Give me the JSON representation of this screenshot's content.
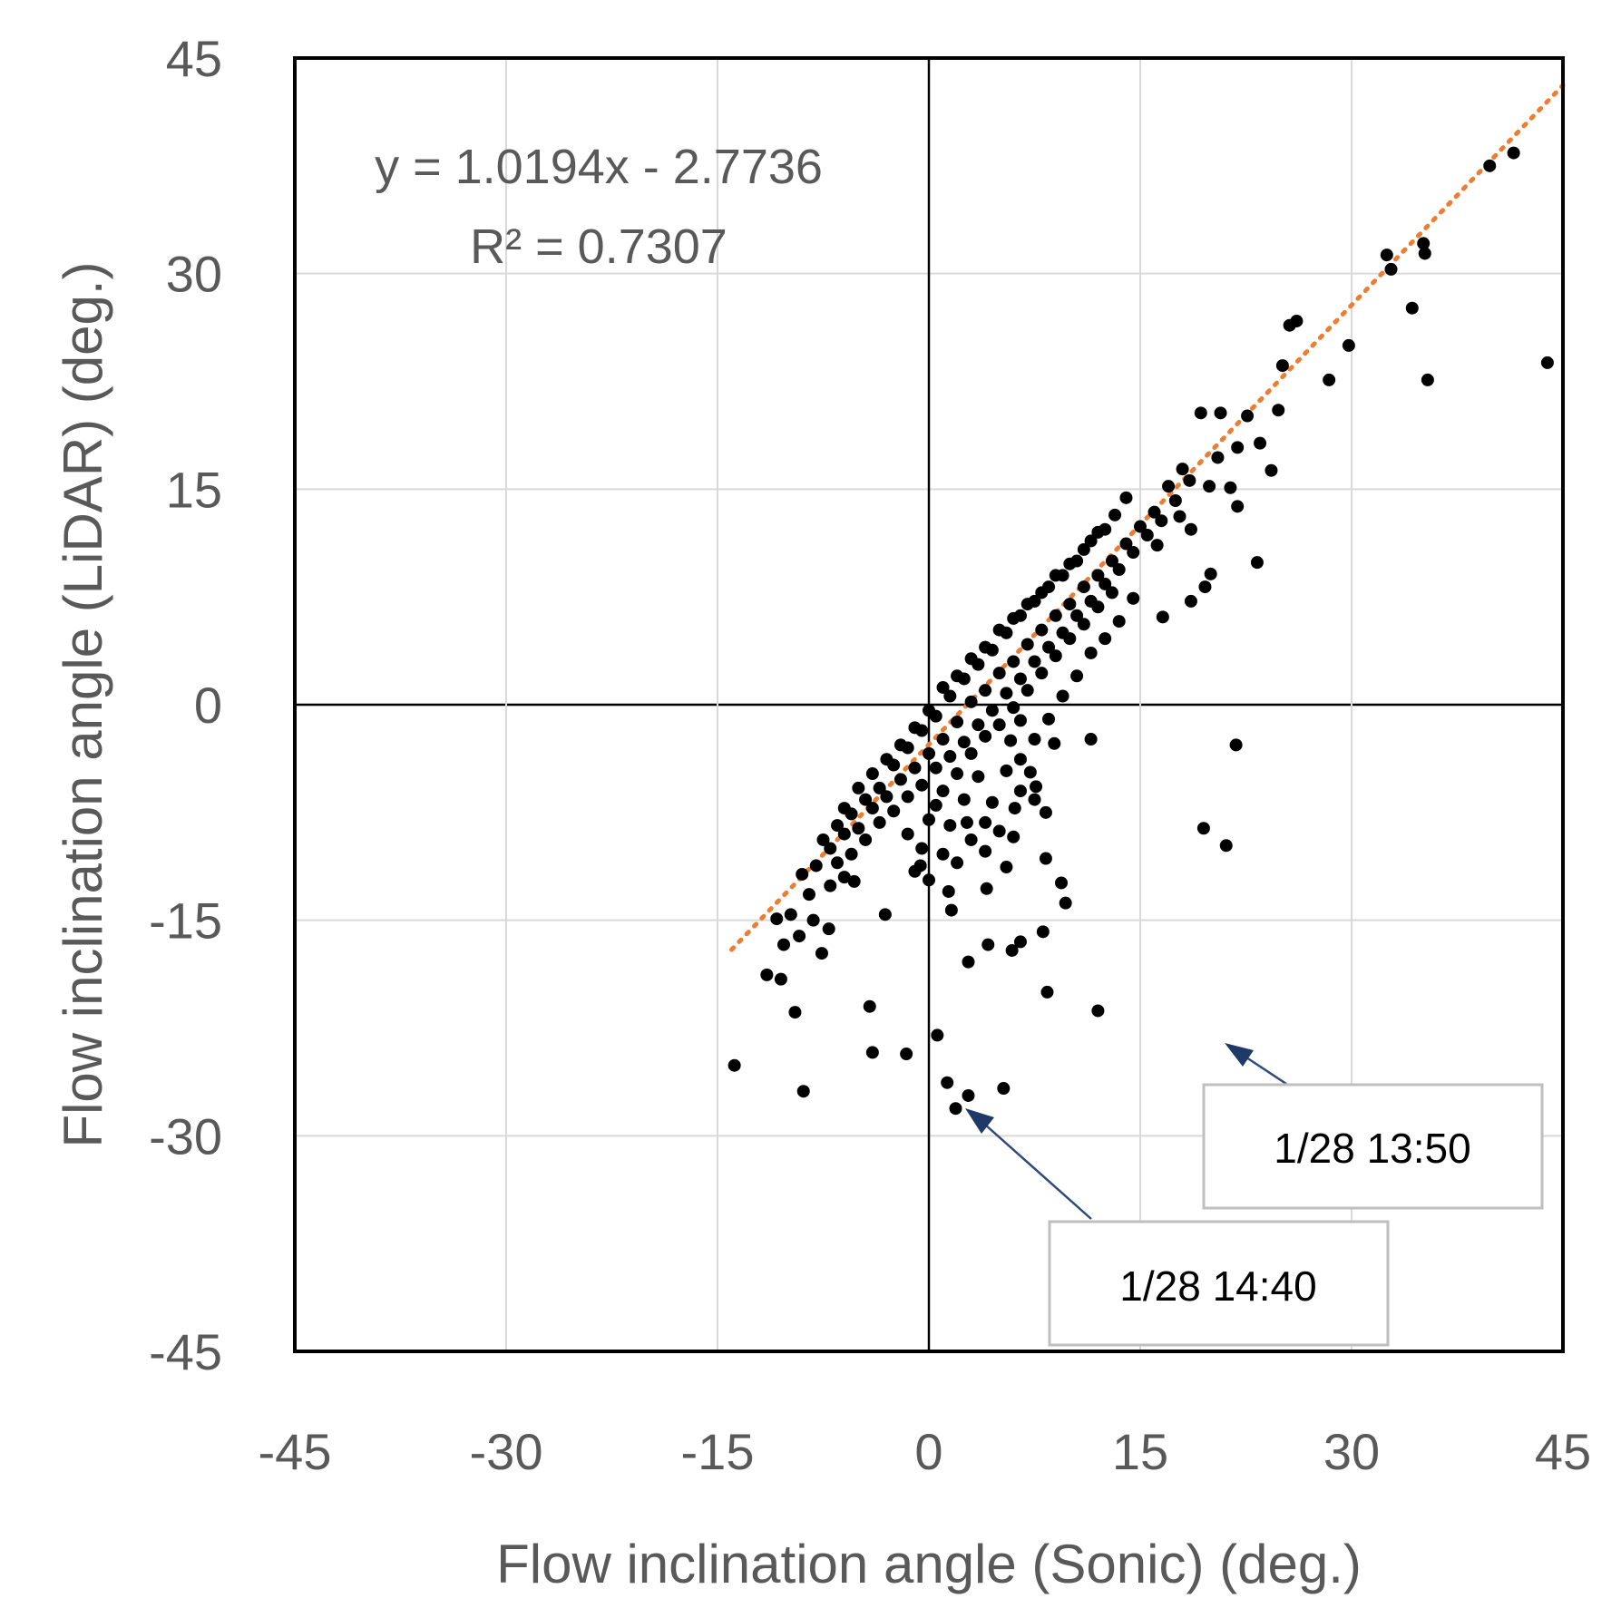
{
  "chart_data": {
    "type": "scatter",
    "xlabel": "Flow inclination angle (Sonic) (deg.)",
    "ylabel": "Flow inclination angle (LiDAR) (deg.)",
    "xlim": [
      -45,
      45
    ],
    "ylim": [
      -45,
      45
    ],
    "xticks": [
      "-45",
      "-30",
      "-15",
      "0",
      "15",
      "30",
      "45"
    ],
    "yticks": [
      "45",
      "30",
      "15",
      "0",
      "-15",
      "-30",
      "-45"
    ],
    "grid": true,
    "marker_color": "#000000",
    "trendline_color": "#ed7d31",
    "trendline": {
      "slope": 1.0194,
      "intercept": -2.7736,
      "x_range": [
        -14,
        45
      ],
      "equation": "y = 1.0194x - 2.7736",
      "r2": "R² = 0.7307"
    },
    "annotations": [
      {
        "label": "1/28 13:50",
        "x": 20.8,
        "y": -22.3
      },
      {
        "label": "1/28 14:40",
        "x": 2.9,
        "y": -27.5
      }
    ],
    "points": [
      [
        -13.8,
        -25.1
      ],
      [
        -11.5,
        -18.8
      ],
      [
        -10.5,
        -19.1
      ],
      [
        -9.5,
        -21.4
      ],
      [
        -8.9,
        -26.9
      ],
      [
        -9.8,
        -14.6
      ],
      [
        -10.8,
        -14.9
      ],
      [
        -9.2,
        -16.1
      ],
      [
        -8.2,
        -15.0
      ],
      [
        -7.1,
        -15.6
      ],
      [
        -7.6,
        -17.3
      ],
      [
        -10.3,
        -16.7
      ],
      [
        -5.3,
        -12.3
      ],
      [
        -4.2,
        -21.0
      ],
      [
        -4.0,
        -24.2
      ],
      [
        -1.6,
        -24.3
      ],
      [
        -3.1,
        -14.6
      ],
      [
        -0.6,
        -11.2
      ],
      [
        0.6,
        -23.0
      ],
      [
        1.3,
        -26.3
      ],
      [
        1.9,
        -28.1
      ],
      [
        2.8,
        -27.2
      ],
      [
        5.3,
        -26.7
      ],
      [
        2.8,
        -17.9
      ],
      [
        4.2,
        -16.7
      ],
      [
        1.6,
        -14.3
      ],
      [
        1.4,
        -13.0
      ],
      [
        4.1,
        -12.8
      ],
      [
        5.9,
        -17.1
      ],
      [
        6.5,
        -16.5
      ],
      [
        8.1,
        -15.8
      ],
      [
        8.4,
        -20.0
      ],
      [
        12.0,
        -21.3
      ],
      [
        9.7,
        -13.8
      ],
      [
        9.4,
        -12.4
      ],
      [
        8.3,
        -10.7
      ],
      [
        5.5,
        -11.3
      ],
      [
        4.0,
        -10.2
      ],
      [
        2.7,
        -8.2
      ],
      [
        6.1,
        -7.2
      ],
      [
        8.3,
        -7.5
      ],
      [
        7.6,
        -5.7
      ],
      [
        7.2,
        -4.7
      ],
      [
        11.5,
        -2.4
      ],
      [
        8.9,
        -2.7
      ],
      [
        6.5,
        -1.1
      ],
      [
        5.8,
        -2.5
      ],
      [
        19.5,
        -8.6
      ],
      [
        21.1,
        -9.8
      ],
      [
        21.8,
        -2.8
      ],
      [
        16.6,
        6.1
      ],
      [
        18.6,
        7.2
      ],
      [
        19.6,
        8.2
      ],
      [
        20.0,
        9.1
      ],
      [
        23.3,
        9.9
      ],
      [
        21.9,
        13.8
      ],
      [
        21.4,
        15.1
      ],
      [
        24.3,
        16.3
      ],
      [
        19.9,
        15.2
      ],
      [
        20.5,
        17.2
      ],
      [
        19.3,
        20.3
      ],
      [
        20.7,
        20.3
      ],
      [
        21.9,
        17.9
      ],
      [
        22.6,
        20.1
      ],
      [
        23.5,
        18.2
      ],
      [
        24.8,
        20.5
      ],
      [
        16.2,
        11.1
      ],
      [
        17.8,
        13.1
      ],
      [
        18.6,
        12.2
      ],
      [
        25.1,
        23.6
      ],
      [
        25.6,
        26.4
      ],
      [
        26.1,
        26.7
      ],
      [
        28.4,
        22.6
      ],
      [
        29.8,
        25.0
      ],
      [
        32.8,
        30.3
      ],
      [
        32.5,
        31.3
      ],
      [
        34.3,
        27.6
      ],
      [
        35.1,
        32.1
      ],
      [
        35.2,
        31.4
      ],
      [
        35.4,
        22.6
      ],
      [
        39.8,
        37.5
      ],
      [
        41.5,
        38.4
      ],
      [
        43.9,
        23.8
      ],
      [
        -7.0,
        -10.0
      ],
      [
        -6.5,
        -11.0
      ],
      [
        -6.0,
        -9.0
      ],
      [
        -5.5,
        -10.4
      ],
      [
        -5.0,
        -8.6
      ],
      [
        -4.5,
        -9.4
      ],
      [
        -4.0,
        -7.2
      ],
      [
        -3.5,
        -8.2
      ],
      [
        -3.0,
        -6.4
      ],
      [
        -2.5,
        -7.4
      ],
      [
        -2.0,
        -5.2
      ],
      [
        -1.5,
        -6.4
      ],
      [
        -1.0,
        -4.4
      ],
      [
        -0.5,
        -5.6
      ],
      [
        0.0,
        -3.4
      ],
      [
        0.5,
        -4.4
      ],
      [
        1.0,
        -2.4
      ],
      [
        1.5,
        -3.6
      ],
      [
        2.0,
        -1.2
      ],
      [
        2.5,
        -2.6
      ],
      [
        3.0,
        0.2
      ],
      [
        3.5,
        -1.4
      ],
      [
        4.0,
        1.0
      ],
      [
        4.5,
        -0.4
      ],
      [
        5.0,
        2.2
      ],
      [
        5.5,
        0.8
      ],
      [
        6.0,
        3.0
      ],
      [
        6.5,
        1.8
      ],
      [
        7.0,
        4.2
      ],
      [
        7.5,
        3.0
      ],
      [
        8.0,
        5.2
      ],
      [
        8.5,
        4.0
      ],
      [
        9.0,
        6.2
      ],
      [
        9.5,
        5.0
      ],
      [
        10.0,
        7.0
      ],
      [
        10.5,
        6.2
      ],
      [
        11.0,
        8.2
      ],
      [
        11.5,
        7.2
      ],
      [
        12.0,
        9.0
      ],
      [
        12.5,
        8.4
      ],
      [
        13.0,
        10.0
      ],
      [
        13.5,
        9.4
      ],
      [
        14.0,
        11.2
      ],
      [
        14.5,
        10.6
      ],
      [
        15.0,
        12.4
      ],
      [
        15.5,
        11.8
      ],
      [
        16.0,
        13.4
      ],
      [
        16.5,
        12.8
      ],
      [
        17.0,
        15.2
      ],
      [
        17.5,
        14.2
      ],
      [
        18.0,
        16.4
      ],
      [
        18.5,
        15.6
      ],
      [
        13.2,
        13.2
      ],
      [
        14.0,
        14.4
      ],
      [
        12.0,
        12.0
      ],
      [
        11.0,
        10.8
      ],
      [
        10.0,
        9.8
      ],
      [
        9.0,
        9.0
      ],
      [
        8.0,
        7.8
      ],
      [
        7.0,
        7.0
      ],
      [
        6.0,
        6.0
      ],
      [
        5.0,
        5.2
      ],
      [
        4.0,
        4.0
      ],
      [
        3.0,
        3.2
      ],
      [
        2.0,
        2.0
      ],
      [
        1.0,
        1.2
      ],
      [
        0.0,
        -0.4
      ],
      [
        -1.0,
        -1.6
      ],
      [
        -2.0,
        -2.8
      ],
      [
        -3.0,
        -3.8
      ],
      [
        -4.0,
        -4.8
      ],
      [
        -5.0,
        -5.8
      ],
      [
        -6.0,
        -7.2
      ],
      [
        0.5,
        -7.0
      ],
      [
        1.5,
        -8.4
      ],
      [
        2.5,
        -6.6
      ],
      [
        3.5,
        -5.0
      ],
      [
        4.5,
        -6.8
      ],
      [
        5.5,
        -4.6
      ],
      [
        6.5,
        -3.8
      ],
      [
        7.5,
        -2.4
      ],
      [
        8.5,
        -1.0
      ],
      [
        9.5,
        0.6
      ],
      [
        10.5,
        2.0
      ],
      [
        11.5,
        3.6
      ],
      [
        12.5,
        4.6
      ],
      [
        13.5,
        5.8
      ],
      [
        14.5,
        7.4
      ],
      [
        -1.5,
        -9.0
      ],
      [
        -0.5,
        -10.0
      ],
      [
        0.0,
        -8.0
      ],
      [
        1.0,
        -6.0
      ],
      [
        2.0,
        -4.8
      ],
      [
        3.0,
        -3.4
      ],
      [
        4.0,
        -2.2
      ],
      [
        5.0,
        -1.4
      ],
      [
        6.0,
        -0.2
      ],
      [
        7.0,
        1.0
      ],
      [
        8.0,
        2.2
      ],
      [
        9.0,
        3.4
      ],
      [
        10.0,
        4.6
      ],
      [
        11.0,
        5.6
      ],
      [
        12.0,
        6.8
      ],
      [
        13.0,
        7.8
      ],
      [
        -2.5,
        -4.2
      ],
      [
        -1.5,
        -3.0
      ],
      [
        -0.5,
        -1.8
      ],
      [
        0.5,
        -0.8
      ],
      [
        1.5,
        0.6
      ],
      [
        2.5,
        1.8
      ],
      [
        3.5,
        2.8
      ],
      [
        4.5,
        3.8
      ],
      [
        5.5,
        5.0
      ],
      [
        6.5,
        6.2
      ],
      [
        7.5,
        7.2
      ],
      [
        8.5,
        8.2
      ],
      [
        9.5,
        9.0
      ],
      [
        10.5,
        10.0
      ],
      [
        11.5,
        11.4
      ],
      [
        12.5,
        12.2
      ],
      [
        -3.5,
        -5.8
      ],
      [
        -4.5,
        -6.6
      ],
      [
        -5.5,
        -7.6
      ],
      [
        -6.5,
        -8.4
      ],
      [
        -7.5,
        -9.4
      ],
      [
        -8.0,
        -11.2
      ],
      [
        -7.0,
        -12.6
      ],
      [
        -8.5,
        -13.2
      ],
      [
        -9.0,
        -11.8
      ],
      [
        -6.0,
        -12.0
      ],
      [
        1.0,
        -10.4
      ],
      [
        -1.0,
        -11.6
      ],
      [
        3.0,
        -9.4
      ],
      [
        4.0,
        -8.2
      ],
      [
        5.0,
        -8.8
      ],
      [
        6.0,
        -9.2
      ],
      [
        0.0,
        -12.2
      ],
      [
        2.0,
        -11.0
      ],
      [
        6.5,
        -6.0
      ],
      [
        7.5,
        -6.6
      ]
    ]
  },
  "equation_line1": "y = 1.0194x - 2.7736",
  "equation_line2": "R² = 0.7307",
  "callout_1350": "1/28 13:50",
  "callout_1440": "1/28 14:40"
}
